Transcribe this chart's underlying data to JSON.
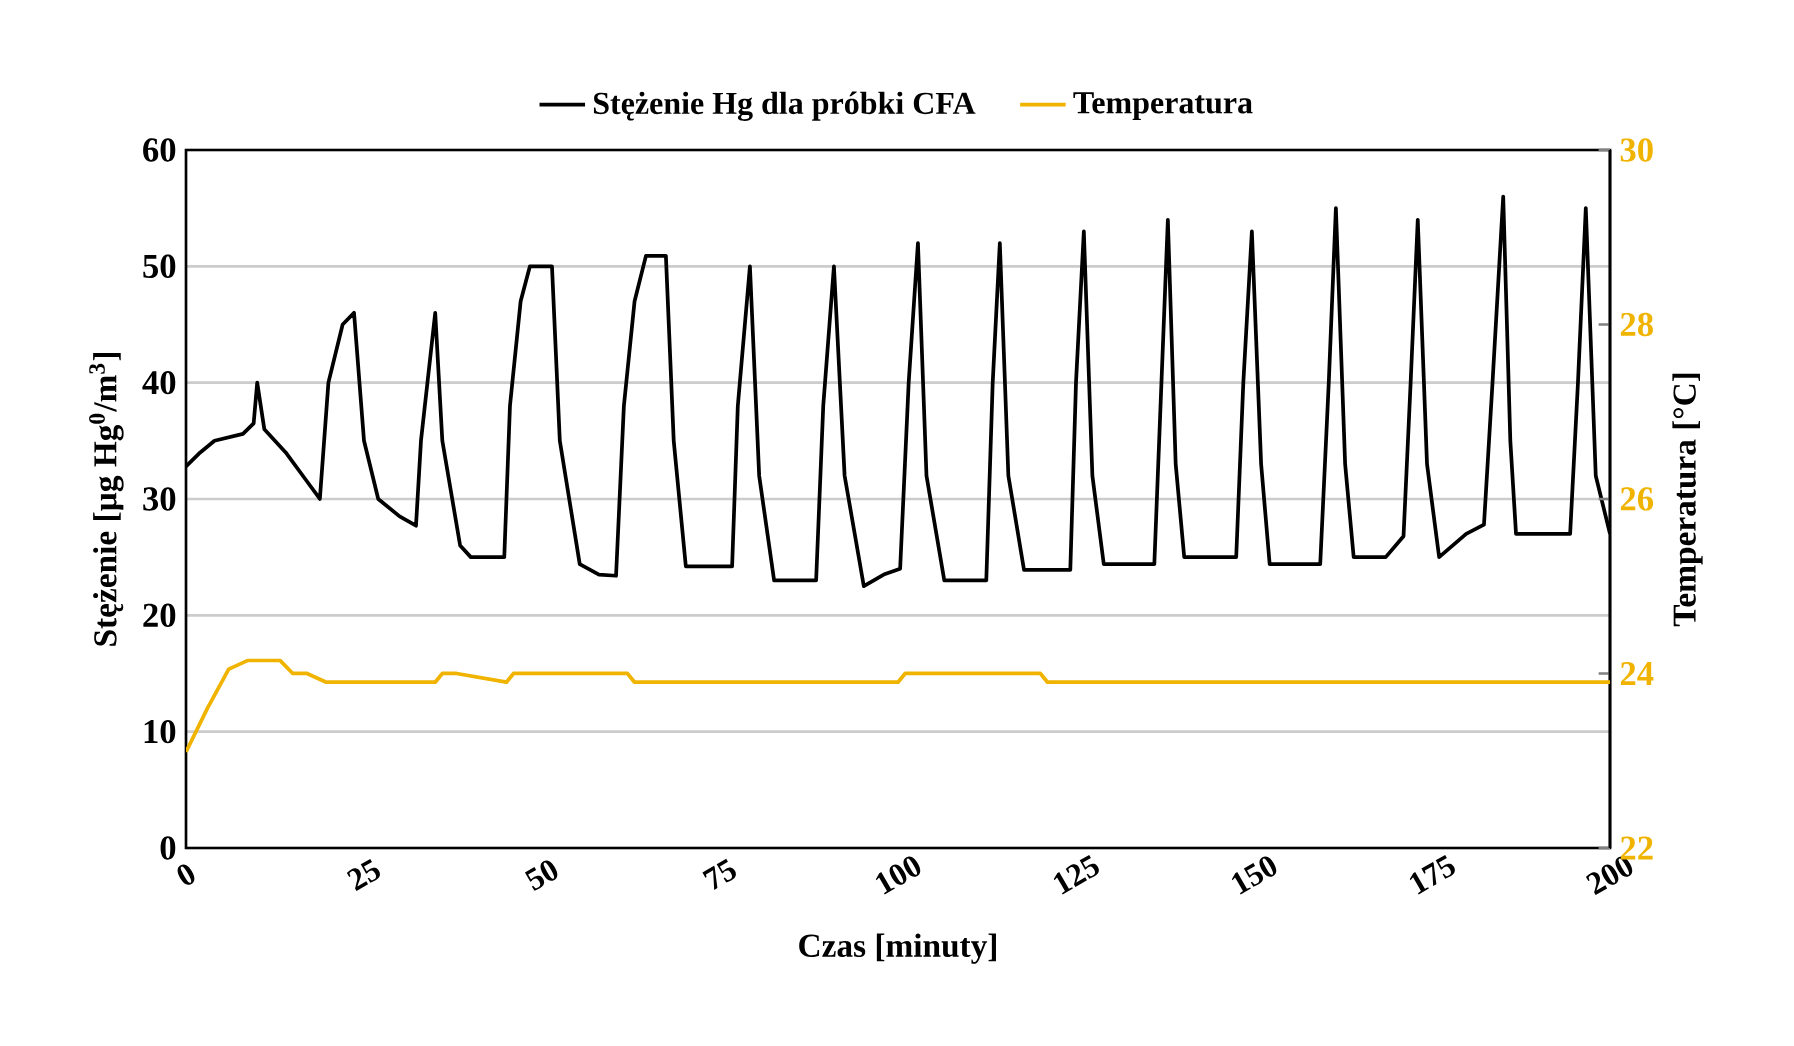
{
  "chart_data": {
    "type": "line",
    "xlabel": "Czas [minuty]",
    "ylabel": "Stężenie [µg Hg$^{0}$/m$^{3}$]",
    "y2label": "Temperatura [°C]",
    "xlim": [
      0,
      200
    ],
    "xticks": [
      0,
      25,
      50,
      75,
      100,
      125,
      150,
      175,
      200
    ],
    "ylim": [
      0,
      60
    ],
    "yticks": [
      0,
      10,
      20,
      30,
      40,
      50,
      60
    ],
    "y2lim": [
      22,
      30
    ],
    "y2ticks": [
      22,
      24,
      26,
      28,
      30
    ],
    "grid": "y",
    "legend": "top",
    "marker": "none",
    "line_style": "solid",
    "series": [
      {
        "name": "Stężenie Hg dla próbki CFA",
        "color": "#000000",
        "x": [
          0,
          2,
          4,
          8,
          9.5,
          10,
          11,
          14,
          17,
          18.8,
          20,
          22,
          23.6,
          25,
          27,
          30,
          32.3,
          33,
          35,
          36,
          38.5,
          40,
          44.7,
          45.5,
          47,
          48.3,
          51.4,
          52.5,
          55.3,
          58,
          60.4,
          61.5,
          63,
          64.6,
          67.4,
          68.5,
          70.2,
          76.7,
          77.5,
          79.2,
          80.5,
          82.6,
          88.5,
          89.5,
          91,
          92.5,
          95.2,
          98,
          100.3,
          101.5,
          102.8,
          104,
          106.5,
          112.4,
          113.3,
          114.3,
          115.5,
          117.7,
          124.2,
          125,
          126.1,
          127.3,
          128.9,
          136,
          137,
          137.9,
          139,
          140.2,
          147.5,
          148.5,
          149.7,
          151,
          152.2,
          159.3,
          160.5,
          161.5,
          162.8,
          164,
          168.5,
          171,
          172,
          173,
          174.3,
          176,
          179.8,
          182.3,
          183.5,
          185,
          186,
          186.8,
          194.4,
          195.5,
          196.6,
          198,
          200
        ],
        "values": [
          32.8,
          34,
          35,
          35.6,
          36.5,
          40,
          36,
          34,
          31.5,
          30,
          40,
          45,
          46,
          35,
          30,
          28.5,
          27.7,
          35,
          46,
          35,
          26,
          25,
          25,
          38,
          47,
          50,
          50,
          35,
          24.4,
          23.5,
          23.4,
          38,
          47,
          50.9,
          50.9,
          35,
          24.2,
          24.2,
          38,
          50,
          32,
          23,
          23,
          38,
          50,
          32,
          22.5,
          23.5,
          24,
          40,
          52,
          32,
          23,
          23,
          40,
          52,
          32,
          23.9,
          23.9,
          40,
          53,
          32,
          24.4,
          24.4,
          40,
          54,
          33,
          25,
          25,
          40,
          53,
          33,
          24.4,
          24.4,
          40,
          55,
          33,
          25,
          25,
          26.8,
          40,
          54,
          33,
          25,
          27,
          27.8,
          40,
          56,
          35,
          27,
          27,
          40,
          55,
          32,
          27
        ]
      },
      {
        "name": "Temperatura",
        "color": "#f0b400",
        "axis": "y2",
        "x": [
          0,
          3,
          6,
          8.7,
          13.2,
          15,
          17,
          19.7,
          35,
          36,
          38,
          45,
          46,
          62,
          63,
          100,
          101,
          120,
          121,
          200
        ],
        "values": [
          23.1,
          23.6,
          24.05,
          24.15,
          24.15,
          24.0,
          24.0,
          23.9,
          23.9,
          24.0,
          24.0,
          23.9,
          24.0,
          24.0,
          23.9,
          23.9,
          24.0,
          24.0,
          23.9,
          23.9
        ]
      }
    ]
  }
}
